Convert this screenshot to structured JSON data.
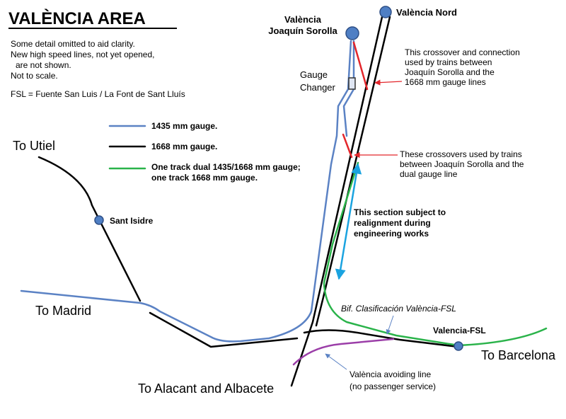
{
  "header": {
    "title": "VALÈNCIA AREA"
  },
  "notes": [
    "Some detail omitted to aid clarity.",
    "New high speed lines, not yet opened,",
    "are not shown.",
    "Not to scale.",
    "FSL = Fuente San Luis / La Font de Sant Lluís"
  ],
  "legend": [
    "1435 mm gauge.",
    "1668 mm gauge.",
    "One track dual 1435/1668 mm gauge;",
    "one track 1668 mm gauge."
  ],
  "stations": {
    "sorolla": [
      "València",
      "Joaquín Sorolla"
    ],
    "nord": "València Nord",
    "sant_isidre": "Sant Isidre",
    "fsl": "Valencia-FSL"
  },
  "labels": {
    "gauge_changer": [
      "Gauge",
      "Changer"
    ],
    "utiel": "To Utiel",
    "madrid": "To Madrid",
    "alacant": "To Alacant and Albacete",
    "barcelona": "To Barcelona",
    "bif": "Bif. Clasificación València-FSL"
  },
  "annotations": [
    [
      "This crossover and connection",
      "used by trains between",
      "Joaquín Sorolla and the",
      "1668 mm gauge lines"
    ],
    [
      "These crossovers used by trains",
      "between Joaquín Sorolla and the",
      "dual gauge line"
    ],
    [
      "This section subject to",
      "realignment during",
      "engineering works"
    ],
    [
      "València avoiding line",
      "(no passenger service)"
    ]
  ]
}
